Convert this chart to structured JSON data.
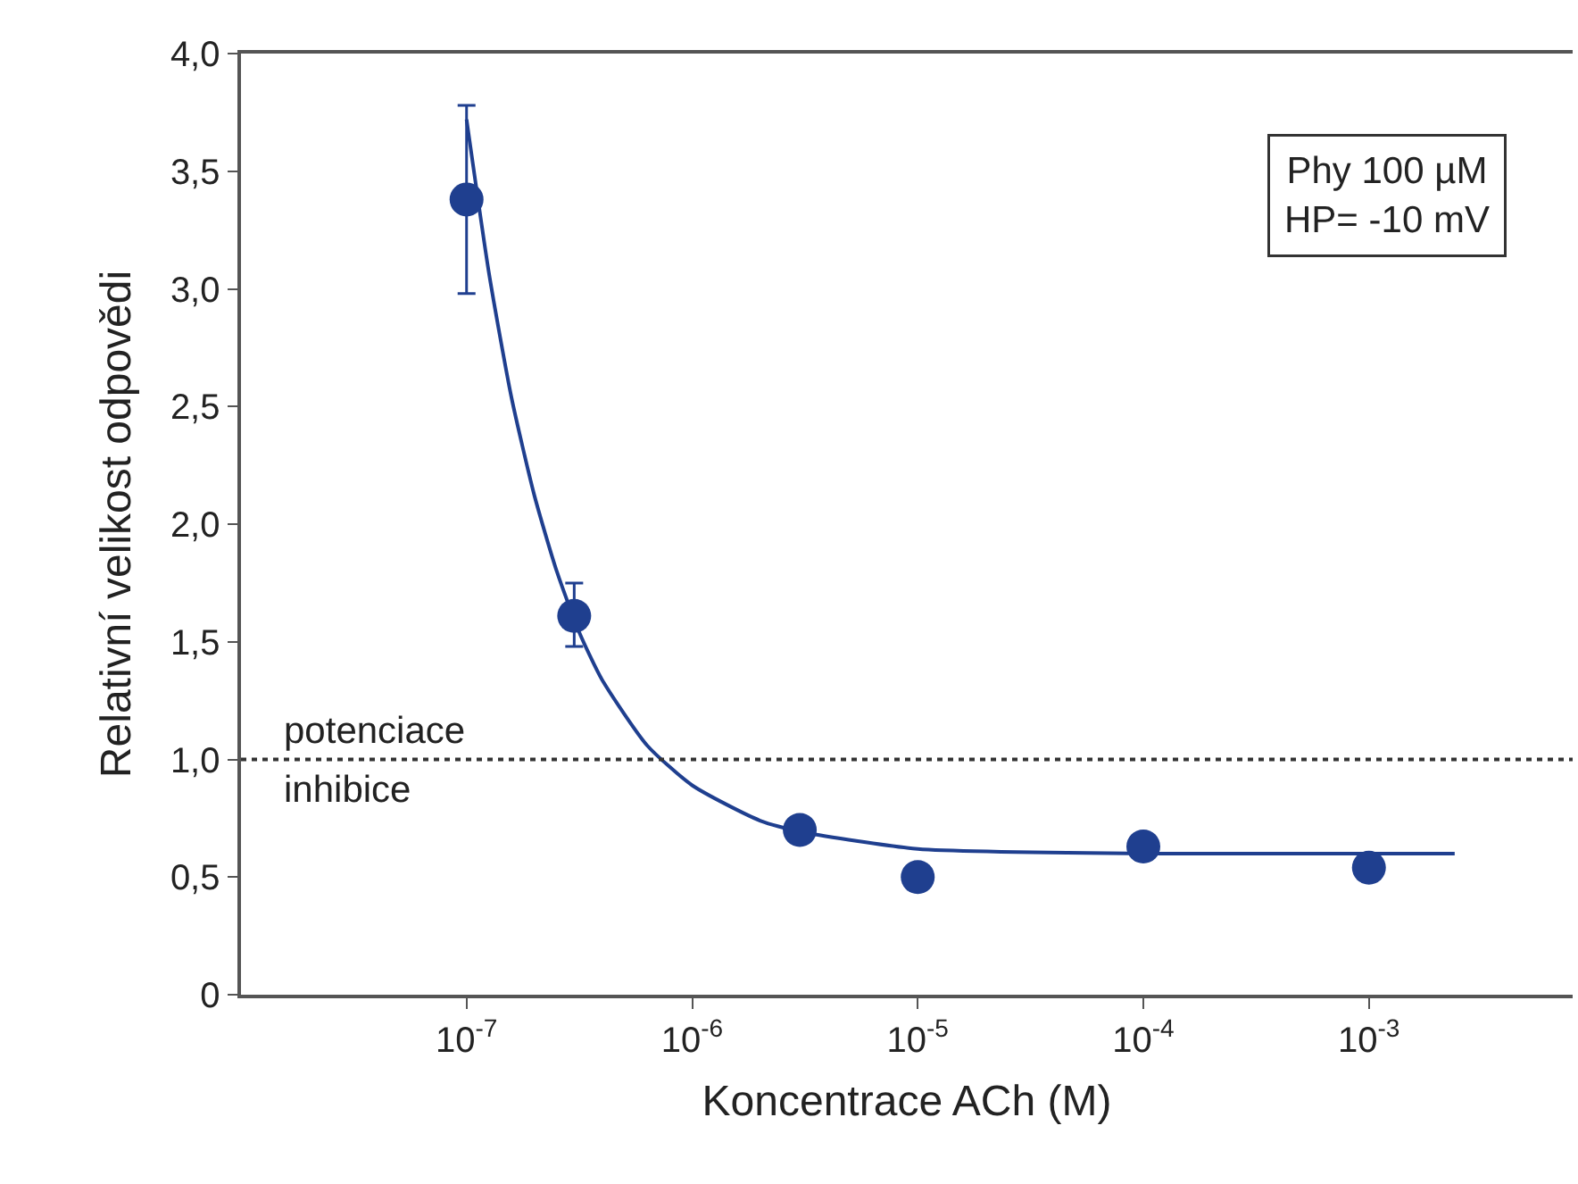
{
  "chart_data": {
    "type": "scatter",
    "xlabel": "Koncentrace ACh (M)",
    "ylabel": "Relativní velikost odpovědi",
    "log": "x",
    "xlim": [
      1e-08,
      0.008
    ],
    "ylim": [
      0,
      4.0
    ],
    "xticks": [
      {
        "value": 1e-07,
        "label": "10$^{-7}$"
      },
      {
        "value": 1e-06,
        "label": "10$^{-6}$"
      },
      {
        "value": 1e-05,
        "label": "10$^{-5}$"
      },
      {
        "value": 0.0001,
        "label": "10$^{-4}$"
      },
      {
        "value": 0.001,
        "label": "10$^{-3}$"
      }
    ],
    "yticks": [
      0,
      {
        "value": 0.5,
        "label": "0,5"
      },
      {
        "value": 1.0,
        "label": "1,0"
      },
      {
        "value": 1.5,
        "label": "1,5"
      },
      {
        "value": 2.0,
        "label": "2,0"
      },
      {
        "value": 2.5,
        "label": "2,5"
      },
      {
        "value": 3.0,
        "label": "3,0"
      },
      {
        "value": 3.5,
        "label": "3,5"
      },
      {
        "value": 4.0,
        "label": "4,0"
      }
    ],
    "legend": false,
    "series": [
      {
        "type": "line",
        "color": "#1f3f8f",
        "x": [
          1e-07,
          1.26e-07,
          1.58e-07,
          2e-07,
          2.51e-07,
          3.16e-07,
          3.98e-07,
          6.31e-07,
          1e-06,
          2e-06,
          3.16e-06,
          1e-05,
          0.0001,
          0.0024
        ],
        "values": [
          3.72,
          3.06,
          2.54,
          2.12,
          1.8,
          1.54,
          1.34,
          1.06,
          0.89,
          0.74,
          0.69,
          0.62,
          0.6,
          0.6
        ]
      },
      {
        "color": "#1f3f8f",
        "marker": "circle",
        "x": [
          1e-07,
          3e-07,
          3e-06,
          1e-05,
          0.0001,
          0.001
        ],
        "values": [
          3.38,
          1.61,
          0.7,
          0.5,
          0.63,
          0.54
        ],
        "errors": [
          [
            2.98,
            3.78
          ],
          [
            1.48,
            1.75
          ],
          null,
          null,
          null,
          null
        ]
      }
    ],
    "ref_lines": [
      {
        "axis": "y",
        "value": 1.0,
        "color": "#333333",
        "line_style": "dotted"
      }
    ],
    "annotations": [
      "potenciace",
      "inhibice",
      "Phy 100 µM\nHP= -10 mV"
    ]
  }
}
